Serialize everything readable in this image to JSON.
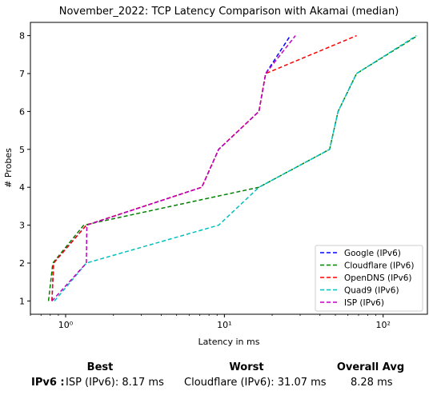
{
  "chart_data": {
    "type": "line",
    "title": "November_2022: TCP Latency Comparison with Akamai (median)",
    "xlabel": "Latency in ms",
    "ylabel": "# Probes",
    "xscale": "log",
    "xlim": [
      0.6,
      190
    ],
    "ylim": [
      0.65,
      8.35
    ],
    "xticks": [
      {
        "value": 1,
        "label": "10⁰"
      },
      {
        "value": 10,
        "label": "10¹"
      },
      {
        "value": 100,
        "label": "10²"
      }
    ],
    "yticks": [
      1,
      2,
      3,
      4,
      5,
      6,
      7,
      8
    ],
    "grid": false,
    "legend_position": "lower right",
    "series": [
      {
        "name": "Google (IPv6)",
        "color": "#0000ff",
        "x": [
          0.82,
          0.84,
          1.35,
          7.2,
          9.2,
          16.5,
          18.2,
          26
        ],
        "y": [
          1,
          2,
          3,
          4,
          5,
          6,
          7,
          8
        ]
      },
      {
        "name": "Cloudflare (IPv6)",
        "color": "#008000",
        "x": [
          0.78,
          0.83,
          1.3,
          16.5,
          46,
          52,
          68,
          165
        ],
        "y": [
          1,
          2,
          3,
          4,
          5,
          6,
          7,
          8
        ]
      },
      {
        "name": "OpenDNS (IPv6)",
        "color": "#ff0000",
        "x": [
          0.82,
          0.84,
          1.35,
          7.2,
          9.2,
          16.5,
          18.2,
          68
        ],
        "y": [
          1,
          2,
          3,
          4,
          5,
          6,
          7,
          8
        ]
      },
      {
        "name": "Quad9 (IPv6)",
        "color": "#00bfbf",
        "x": [
          0.85,
          1.35,
          9.2,
          16.5,
          46,
          52,
          68,
          162
        ],
        "y": [
          1,
          2,
          3,
          4,
          5,
          6,
          7,
          8
        ]
      },
      {
        "name": "ISP (IPv6)",
        "color": "#bf00bf",
        "x": [
          0.82,
          1.35,
          1.36,
          7.2,
          9.2,
          16.5,
          18.2,
          28
        ],
        "y": [
          1,
          2,
          3,
          4,
          5,
          6,
          7,
          8
        ]
      }
    ]
  },
  "summary": {
    "headers": {
      "best": "Best",
      "worst": "Worst",
      "overall": "Overall Avg"
    },
    "row_label": "IPv6 :",
    "best": "ISP (IPv6): 8.17 ms",
    "worst": "Cloudflare (IPv6): 31.07 ms",
    "overall": "8.28 ms"
  }
}
